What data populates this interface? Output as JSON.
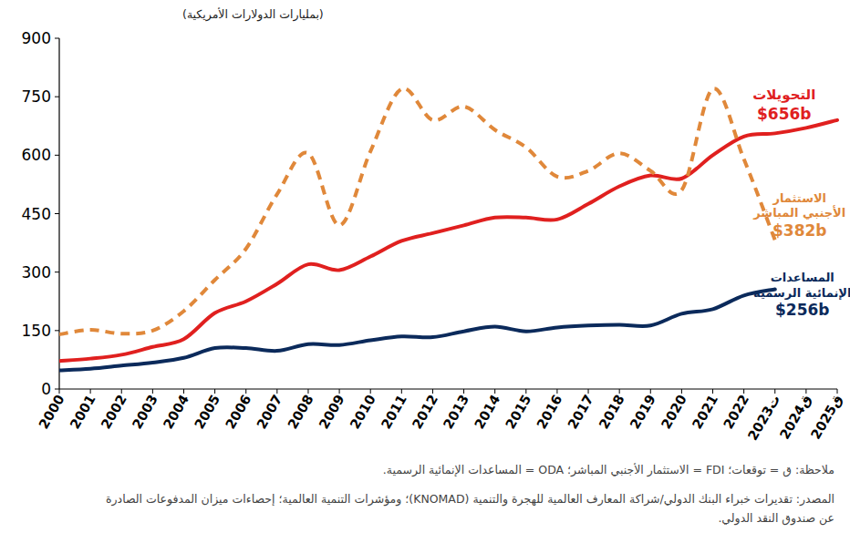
{
  "chart_data": {
    "type": "line",
    "ylabel": "(بمليارات الدولارات الأمريكية)",
    "note": "ملاحظة: ق = توقعات؛ FDI = الاستثمار الأجنبي المباشر؛ ODA = المساعدات الإنمائية الرسمية.",
    "source": "المصدر: تقديرات خبراء البنك الدولي/شراكة المعارف العالمية للهجرة والتنمية (KNOMAD)؛ ومؤشرات التنمية العالمية؛ إحصاءات ميزان المدفوعات الصادرة عن صندوق النقد الدولي.",
    "categories": [
      "2000",
      "2001",
      "2002",
      "2003",
      "2004",
      "2005",
      "2006",
      "2007",
      "2008",
      "2009",
      "2010",
      "2011",
      "2012",
      "2013",
      "2014",
      "2015",
      "2016",
      "2017",
      "2018",
      "2019",
      "2020",
      "2021",
      "2022",
      "2023ت",
      "2024ق",
      "2025ق"
    ],
    "ylim": [
      0,
      900
    ],
    "yticks": [
      0,
      150,
      300,
      450,
      600,
      750,
      900
    ],
    "grid": false,
    "series": [
      {
        "name": "التحويلات",
        "color": "#e0201f",
        "line_style": "solid",
        "values": [
          72,
          78,
          88,
          108,
          128,
          195,
          225,
          270,
          320,
          305,
          340,
          380,
          400,
          420,
          440,
          440,
          435,
          475,
          520,
          548,
          540,
          600,
          648,
          656,
          670,
          690
        ],
        "value_labels": [
          null,
          null,
          null,
          null,
          null,
          null,
          null,
          null,
          null,
          null,
          null,
          null,
          null,
          null,
          null,
          null,
          null,
          null,
          null,
          null,
          null,
          null,
          null,
          "$656b",
          null,
          null
        ]
      },
      {
        "name": "الاستثمار الأجنبي المباشر",
        "color": "#e0883a",
        "line_style": "dashed",
        "values": [
          140,
          152,
          142,
          150,
          200,
          280,
          360,
          500,
          605,
          420,
          610,
          770,
          690,
          725,
          665,
          620,
          545,
          560,
          605,
          560,
          510,
          770,
          590,
          382,
          null,
          null
        ],
        "value_labels": [
          null,
          null,
          null,
          null,
          null,
          null,
          null,
          null,
          null,
          null,
          null,
          null,
          null,
          null,
          null,
          null,
          null,
          null,
          null,
          null,
          null,
          null,
          null,
          "$382b",
          null,
          null
        ]
      },
      {
        "name": "المساعدات الإنمائية الرسمية",
        "color": "#0b2a5b",
        "line_style": "solid",
        "values": [
          48,
          52,
          60,
          68,
          80,
          105,
          105,
          98,
          115,
          113,
          125,
          135,
          133,
          148,
          160,
          148,
          158,
          163,
          165,
          163,
          193,
          205,
          240,
          256,
          null,
          null
        ],
        "value_labels": [
          null,
          null,
          null,
          null,
          null,
          null,
          null,
          null,
          null,
          null,
          null,
          null,
          null,
          null,
          null,
          null,
          null,
          null,
          null,
          null,
          null,
          null,
          null,
          "$256b",
          null,
          null
        ]
      }
    ]
  }
}
